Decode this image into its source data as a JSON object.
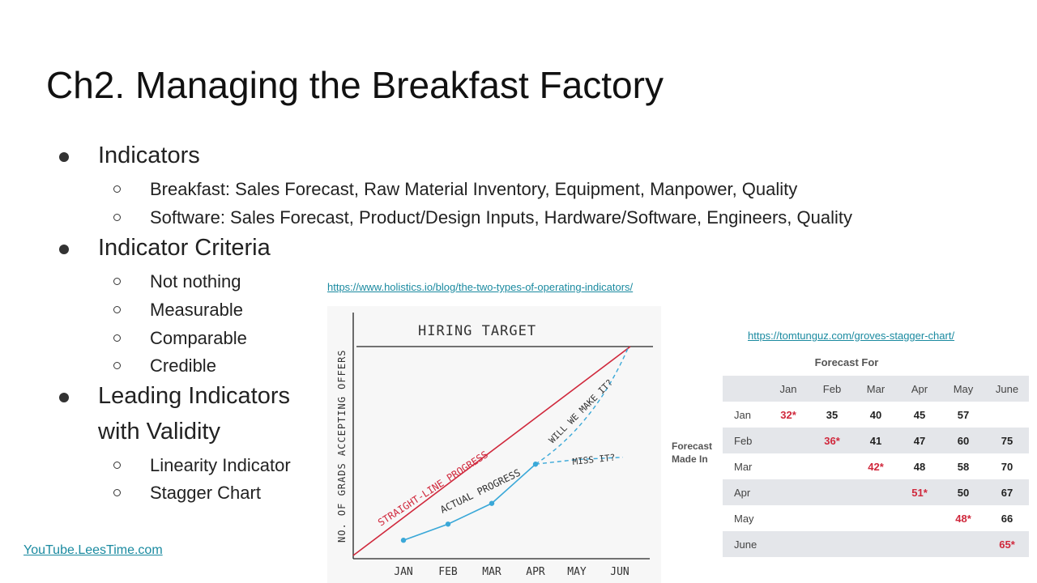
{
  "slide": {
    "title": "Ch2. Managing the Breakfast Factory",
    "bullets": [
      {
        "text": "Indicators",
        "sub": [
          "Breakfast: Sales Forecast, Raw Material Inventory, Equipment, Manpower, Quality",
          "Software: Sales Forecast, Product/Design Inputs, Hardware/Software, Engineers, Quality"
        ]
      },
      {
        "text": "Indicator Criteria",
        "sub": [
          "Not nothing",
          "Measurable",
          "Comparable",
          "Credible"
        ]
      },
      {
        "text_line1": "Leading Indicators",
        "text_line2": "with Validity",
        "sub": [
          "Linearity Indicator",
          "Stagger Chart"
        ]
      }
    ],
    "link_holistics": "https://www.holistics.io/blog/the-two-types-of-operating-indicators/",
    "link_tomtunguz": "https://tomtunguz.com/groves-stagger-chart/",
    "footer_link": "YouTube.LeesTime.com"
  },
  "chart_data": [
    {
      "type": "line",
      "title": "HIRING TARGET",
      "ylabel": "NO. OF GRADS ACCEPTING OFFERS",
      "xlabel": "",
      "categories": [
        "JAN",
        "FEB",
        "MAR",
        "APR",
        "MAY",
        "JUN"
      ],
      "annotations": [
        "STRAIGHT-LINE PROGRESS",
        "ACTUAL PROGRESS",
        "WILL WE MAKE IT?",
        "MISS IT?"
      ],
      "series": [
        {
          "name": "STRAIGHT-LINE PROGRESS",
          "values": [
            10,
            26,
            43,
            59,
            76,
            92
          ]
        },
        {
          "name": "ACTUAL PROGRESS",
          "values": [
            8,
            15,
            24,
            41,
            null,
            null
          ]
        },
        {
          "name": "WILL WE MAKE IT?",
          "values": [
            null,
            null,
            null,
            41,
            58,
            92
          ]
        },
        {
          "name": "MISS IT?",
          "values": [
            null,
            null,
            null,
            41,
            43,
            44
          ]
        }
      ],
      "target": 92,
      "colors": {
        "straight": "#d0283c",
        "actual": "#3aa8d8",
        "axis": "#222"
      }
    },
    {
      "type": "table",
      "title": "Forecast For",
      "row_header": "Forecast Made In",
      "columns": [
        "Jan",
        "Feb",
        "Mar",
        "Apr",
        "May",
        "June"
      ],
      "rows": [
        {
          "label": "Jan",
          "cells": [
            "32*",
            "35",
            "40",
            "45",
            "57",
            ""
          ],
          "highlight": 0
        },
        {
          "label": "Feb",
          "cells": [
            "",
            "36*",
            "41",
            "47",
            "60",
            "75"
          ],
          "highlight": 1
        },
        {
          "label": "Mar",
          "cells": [
            "",
            "",
            "42*",
            "48",
            "58",
            "70"
          ],
          "highlight": 2
        },
        {
          "label": "Apr",
          "cells": [
            "",
            "",
            "",
            "51*",
            "50",
            "67"
          ],
          "highlight": 3
        },
        {
          "label": "May",
          "cells": [
            "",
            "",
            "",
            "",
            "48*",
            "66"
          ],
          "highlight": 4
        },
        {
          "label": "June",
          "cells": [
            "",
            "",
            "",
            "",
            "",
            "65*"
          ],
          "highlight": 5
        }
      ],
      "colors": {
        "highlight": "#d0283c",
        "shade": "#e4e6ea"
      }
    }
  ]
}
